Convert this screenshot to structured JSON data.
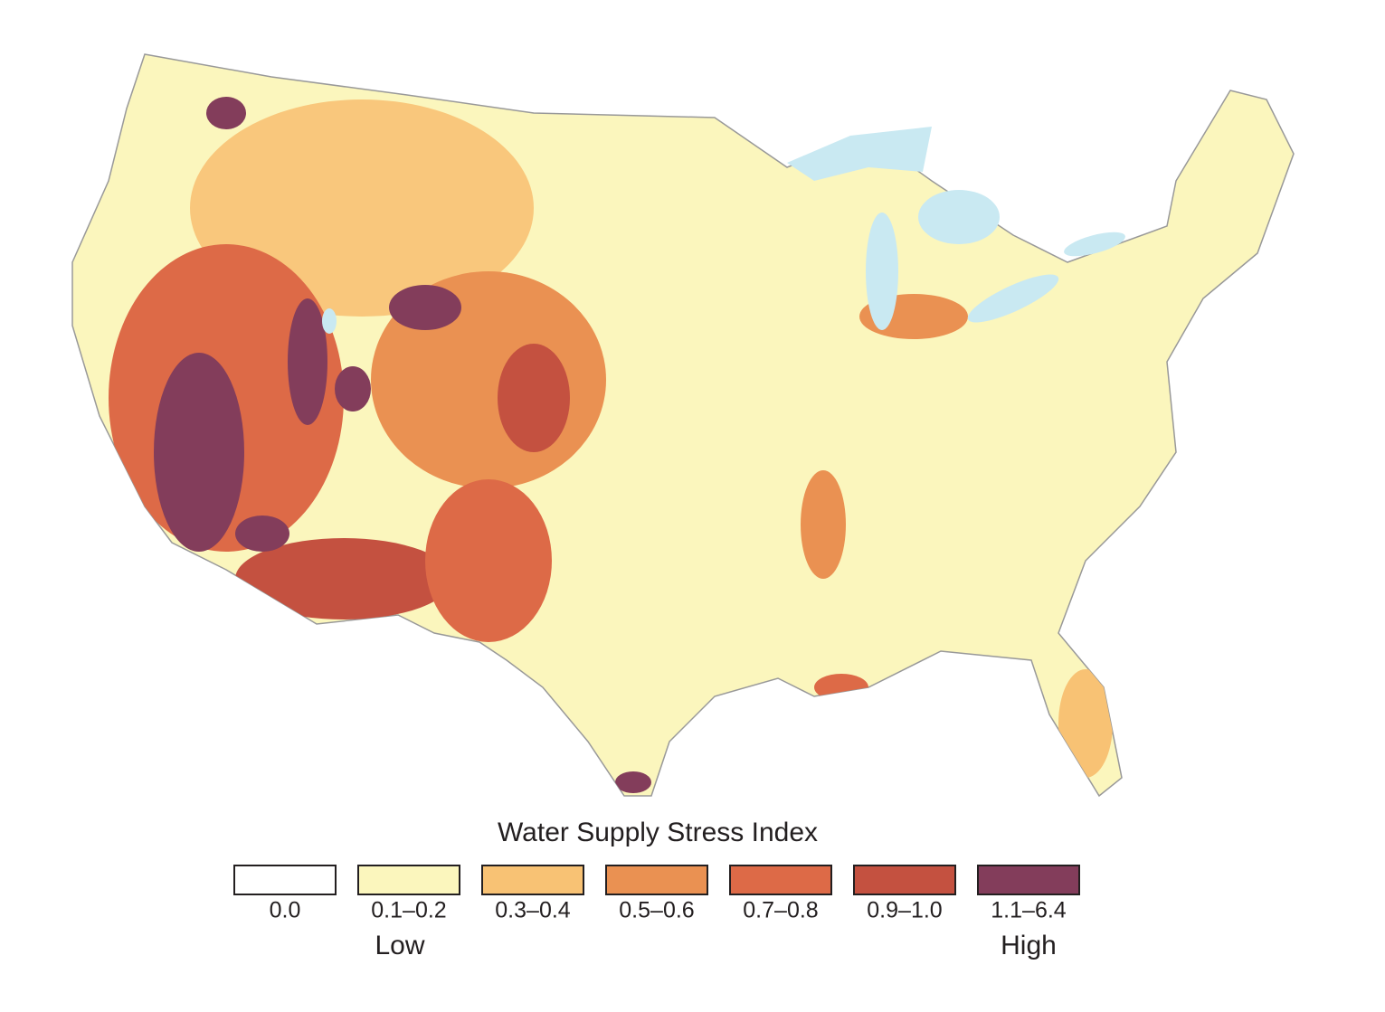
{
  "legend": {
    "title": "Water Supply Stress Index",
    "classes": [
      {
        "label": "0.0",
        "color": "#ffffff"
      },
      {
        "label": "0.1–0.2",
        "color": "#fbf6bd"
      },
      {
        "label": "0.3–0.4",
        "color": "#f8c274"
      },
      {
        "label": "0.5–0.6",
        "color": "#ea9152"
      },
      {
        "label": "0.7–0.8",
        "color": "#dd6a47"
      },
      {
        "label": "0.9–1.0",
        "color": "#c45140"
      },
      {
        "label": "1.1–6.4",
        "color": "#833d5b"
      }
    ],
    "low_label": "Low",
    "high_label": "High"
  }
}
